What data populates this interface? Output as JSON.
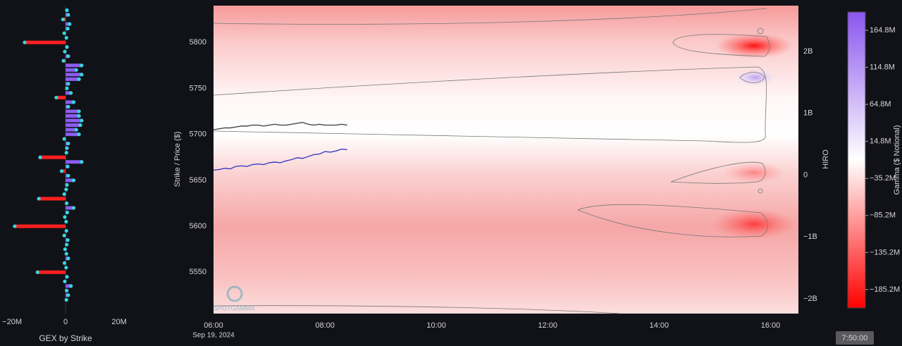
{
  "chart_data": [
    {
      "type": "hbar",
      "title": "GEX by Strike",
      "y": [
        5835,
        5830,
        5825,
        5820,
        5815,
        5810,
        5805,
        5800,
        5795,
        5790,
        5785,
        5780,
        5775,
        5770,
        5765,
        5760,
        5755,
        5750,
        5745,
        5740,
        5735,
        5730,
        5725,
        5720,
        5715,
        5710,
        5705,
        5700,
        5695,
        5690,
        5685,
        5680,
        5675,
        5670,
        5665,
        5660,
        5655,
        5650,
        5645,
        5640,
        5635,
        5630,
        5625,
        5620,
        5615,
        5610,
        5605,
        5600,
        5595,
        5590,
        5585,
        5580,
        5575,
        5570,
        5565,
        5560,
        5555,
        5550,
        5545,
        5540,
        5535,
        5530,
        5525,
        5520
      ],
      "values": [
        500000,
        1000000,
        -1000000,
        1500000,
        800000,
        -500000,
        300000,
        -15300000,
        500000,
        -300000,
        1000000,
        -800000,
        6000000,
        4000000,
        6000000,
        5000000,
        1000000,
        500000,
        2000000,
        -3500000,
        3000000,
        1000000,
        5000000,
        5000000,
        6000000,
        5500000,
        4000000,
        5000000,
        -500000,
        1000000,
        500000,
        300000,
        -9500000,
        6000000,
        800000,
        -1500000,
        1000000,
        3000000,
        500000,
        200000,
        -500000,
        -10000000,
        400000,
        3000000,
        600000,
        -300000,
        200000,
        -19000000,
        300000,
        -500000,
        800000,
        400000,
        -200000,
        300000,
        1000000,
        -400000,
        200000,
        -10500000,
        500000,
        -300000,
        2000000,
        400000,
        1000000,
        300000
      ],
      "xlim": [
        -24500000,
        25500000
      ],
      "xticks": [
        {
          "value": -20000000,
          "label": "−20M"
        },
        0,
        {
          "value": 20000000,
          "label": "20M"
        }
      ],
      "ylim": [
        5505,
        5840
      ],
      "positive_color": "#8b5cf0",
      "negative_color": "#ff1f1f",
      "dot_color": "#35d6e0"
    },
    {
      "type": "heatmap-line",
      "ylabel": "Strike / Price ($)",
      "y2label": "HIRO",
      "xlim": [
        6,
        16.5
      ],
      "xticks": [
        {
          "value": 6,
          "label": "06:00"
        },
        {
          "value": 8,
          "label": "08:00"
        },
        {
          "value": 10,
          "label": "10:00"
        },
        {
          "value": 12,
          "label": "12:00"
        },
        {
          "value": 14,
          "label": "14:00"
        },
        {
          "value": 16,
          "label": "16:00"
        }
      ],
      "date_label": "Sep 19, 2024",
      "ylim": [
        5505,
        5840
      ],
      "yticks": [
        5550,
        5600,
        5650,
        5700,
        5750,
        5800
      ],
      "y2lim": [
        -2240000000,
        2740000000
      ],
      "y2ticks": [
        {
          "value": -2000000000,
          "label": "−2B"
        },
        {
          "value": -1000000000,
          "label": "−1B"
        },
        0,
        {
          "value": 1000000000,
          "label": "1B"
        },
        {
          "value": 2000000000,
          "label": "2B"
        }
      ],
      "x": [
        6.0,
        6.1,
        6.2,
        6.3,
        6.4,
        6.5,
        6.6,
        6.7,
        6.8,
        6.9,
        7.0,
        7.1,
        7.2,
        7.3,
        7.4,
        7.5,
        7.6,
        7.7,
        7.8,
        7.9,
        8.0,
        8.1,
        8.2,
        8.3,
        8.4
      ],
      "series": [
        {
          "color": "#4a4a4a",
          "axis": "y",
          "values": [
            5705,
            5706,
            5707,
            5707,
            5708,
            5709,
            5709,
            5710,
            5710,
            5709,
            5710,
            5711,
            5710,
            5710,
            5711,
            5712,
            5713,
            5711,
            5710,
            5711,
            5710,
            5710,
            5710,
            5711,
            5710
          ]
        },
        {
          "color": "#3b3bc4",
          "axis": "y2",
          "values": [
            80000000,
            90000000,
            110000000,
            100000000,
            140000000,
            150000000,
            140000000,
            170000000,
            180000000,
            170000000,
            200000000,
            210000000,
            200000000,
            230000000,
            250000000,
            280000000,
            270000000,
            300000000,
            330000000,
            340000000,
            380000000,
            370000000,
            390000000,
            420000000,
            410000000
          ]
        }
      ],
      "colorbar": {
        "label": "Gamma ($ Notional)",
        "lim": [
          -210000000,
          189500000
        ],
        "ticks": [
          {
            "value": 164800000,
            "label": "164.8M"
          },
          {
            "value": 114800000,
            "label": "114.8M"
          },
          {
            "value": 64800000,
            "label": "64.8M"
          },
          {
            "value": 14800000,
            "label": "14.8M"
          },
          {
            "value": -35200000,
            "label": "−35.2M"
          },
          {
            "value": -85200000,
            "label": "−85.2M"
          },
          {
            "value": -135200000,
            "label": "−135.2M"
          },
          {
            "value": -185200000,
            "label": "−185.2M"
          }
        ],
        "colors": [
          "#ff0000",
          "#ffffff",
          "#8b55ee"
        ]
      },
      "watermark": "SPOTGAMMA"
    }
  ],
  "playback_time": "7:50:00"
}
